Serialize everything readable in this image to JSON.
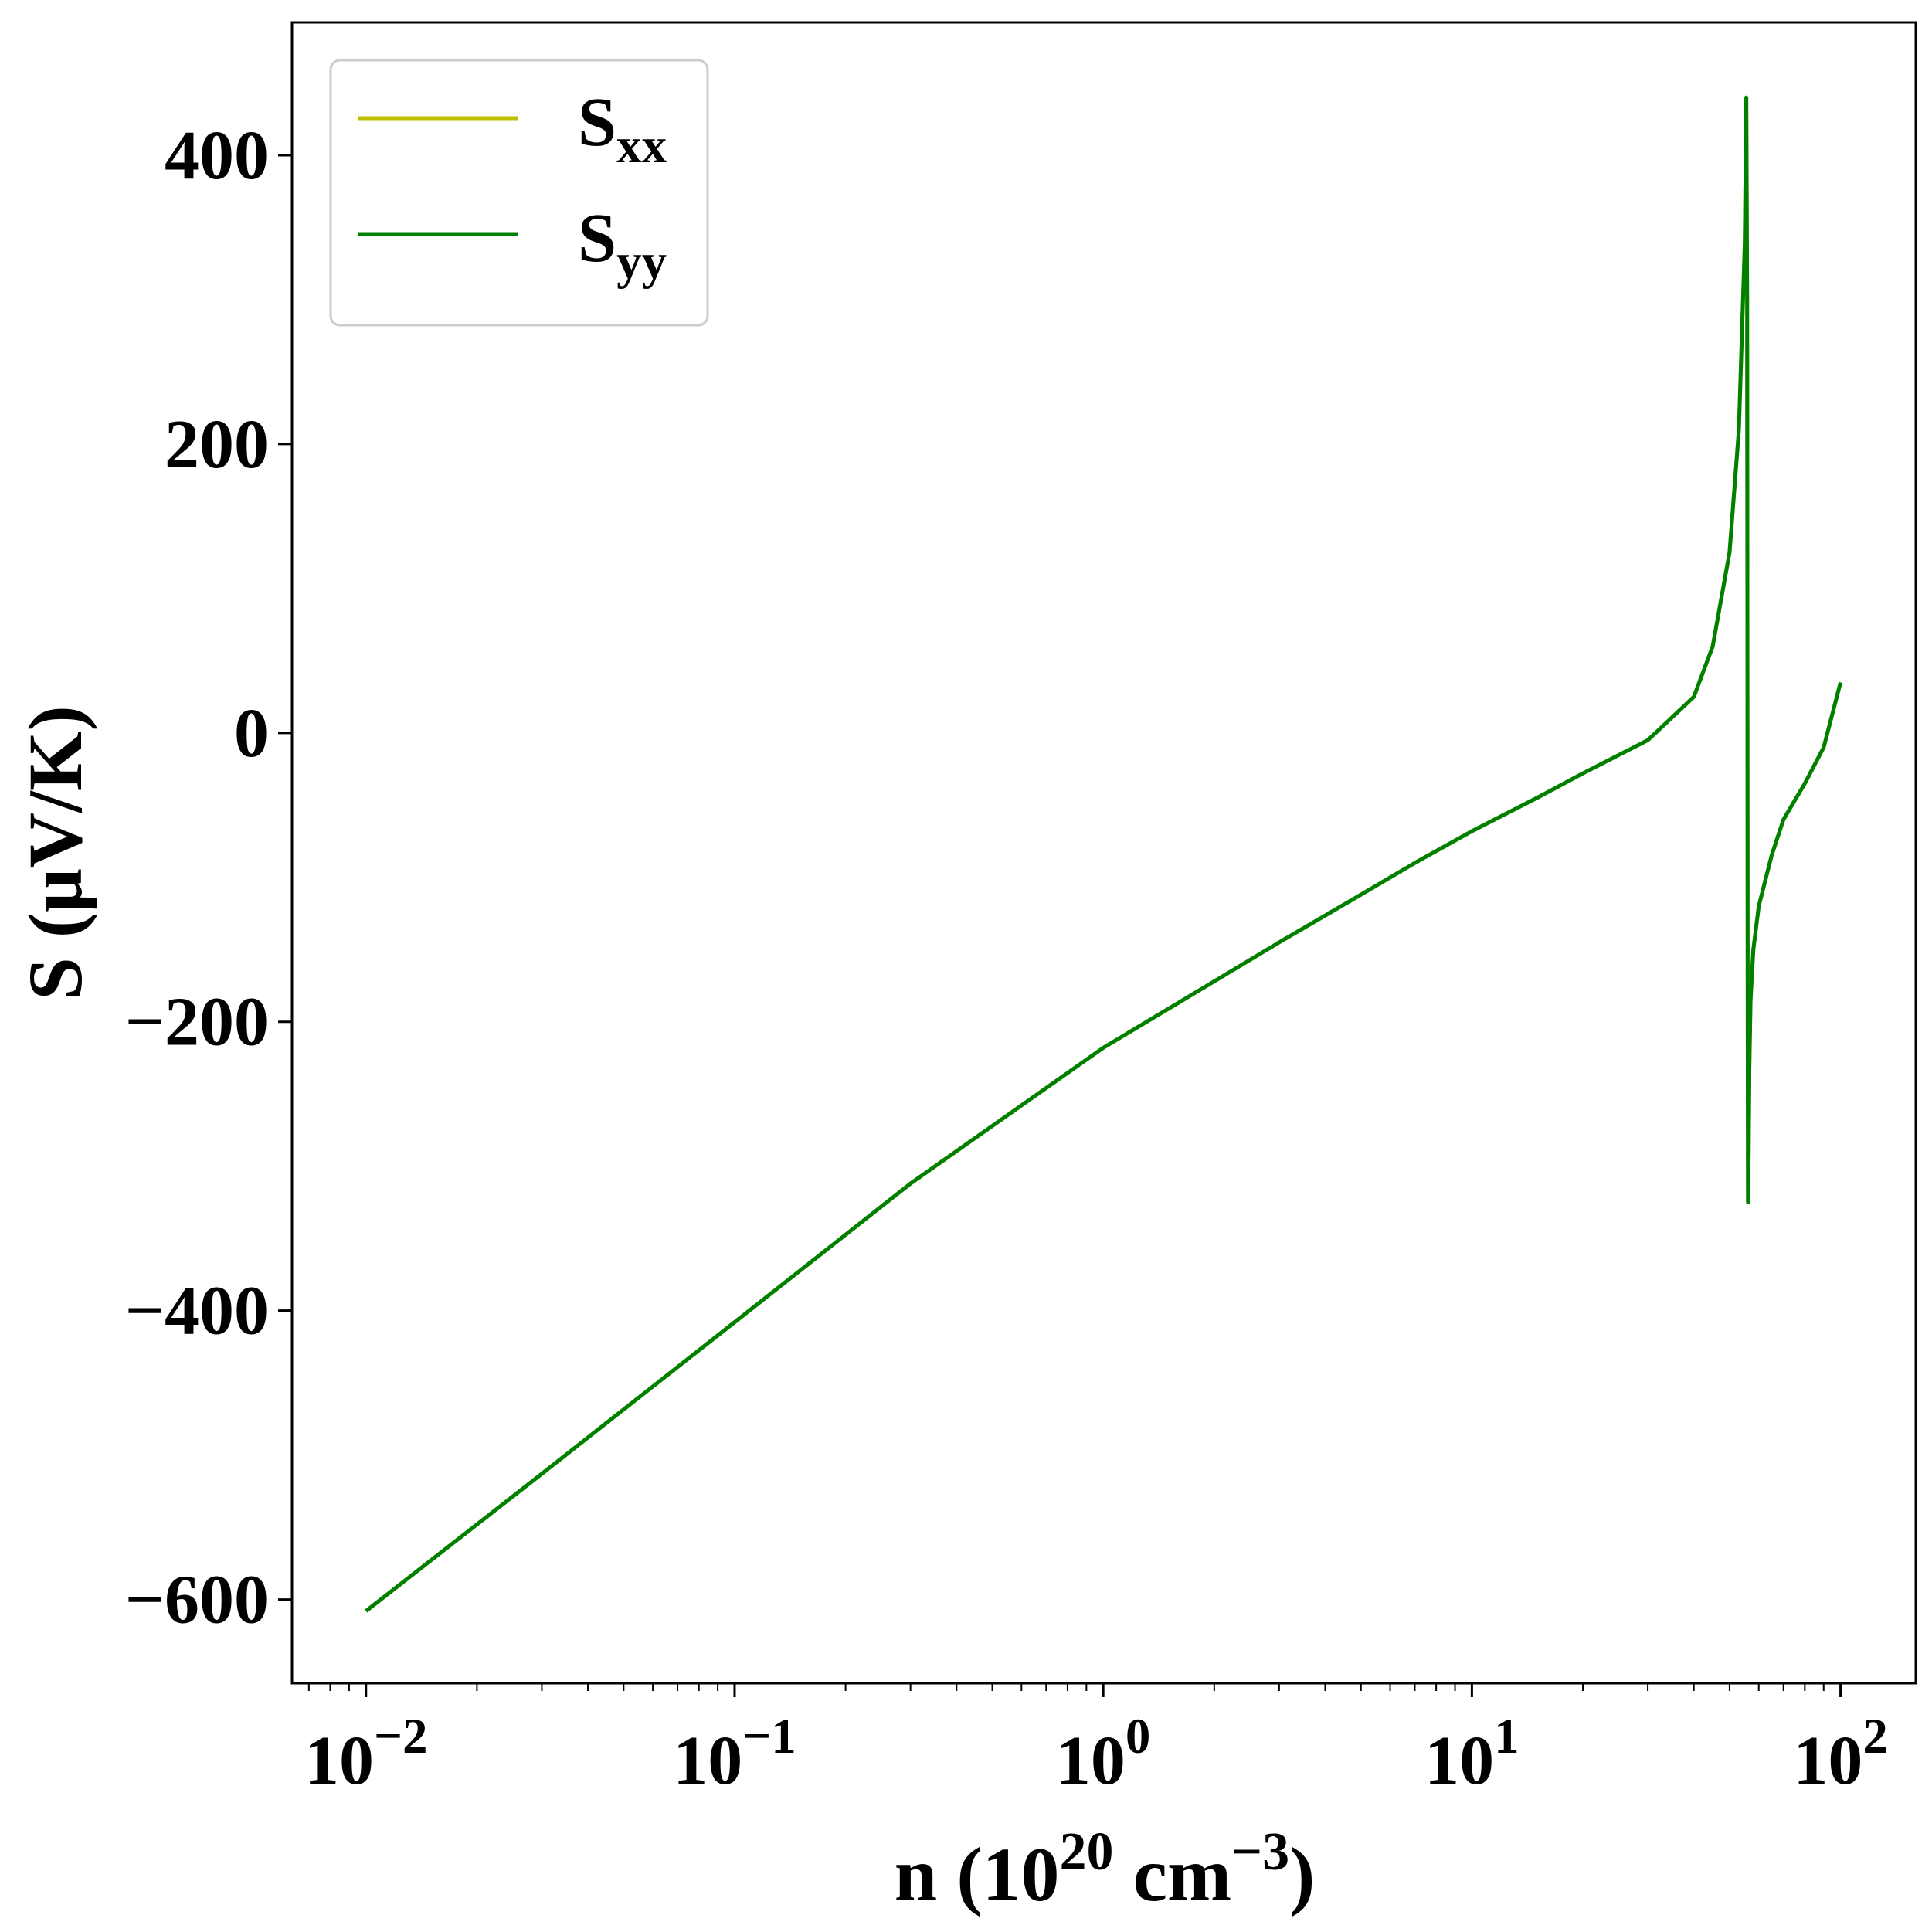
{
  "chart_data": {
    "type": "line",
    "title": "",
    "xlabel": "n (10^20 cm^-3)",
    "ylabel": "S (μV/K)",
    "xscale": "log",
    "xlim": [
      0.0063,
      160
    ],
    "ylim": [
      -658,
      492
    ],
    "x_ticks": [
      {
        "value": 0.01,
        "base": "10",
        "exp": "−2"
      },
      {
        "value": 0.1,
        "base": "10",
        "exp": "−1"
      },
      {
        "value": 1,
        "base": "10",
        "exp": "0"
      },
      {
        "value": 10,
        "base": "10",
        "exp": "1"
      },
      {
        "value": 100,
        "base": "10",
        "exp": "2"
      }
    ],
    "y_ticks": [
      {
        "value": 400,
        "label": "400"
      },
      {
        "value": 200,
        "label": "200"
      },
      {
        "value": 0,
        "label": "0"
      },
      {
        "value": -200,
        "label": "−200"
      },
      {
        "value": -400,
        "label": "−400"
      },
      {
        "value": -600,
        "label": "−600"
      }
    ],
    "grid": false,
    "legend_position": "top-left",
    "series": [
      {
        "name": "Sxx",
        "legend_main": "S",
        "legend_sub": "xx",
        "color": "#bfbf00",
        "x": [
          0.01,
          0.03,
          0.1,
          0.3,
          1,
          2,
          3,
          5,
          7,
          10,
          15,
          20,
          30,
          40,
          45,
          50,
          53,
          55,
          55.5,
          55.8,
          56.0,
          56.1,
          56.3,
          56.6,
          57,
          58,
          60,
          65,
          70,
          80,
          90,
          100
        ],
        "y": [
          -608,
          -513,
          -408,
          -312,
          -218,
          -172,
          -145,
          -112,
          -90,
          -68,
          -45,
          -28,
          -5,
          25,
          60,
          125,
          210,
          340,
          440,
          300,
          -200,
          -325,
          -300,
          -230,
          -185,
          -150,
          -120,
          -85,
          -60,
          -35,
          -10,
          35
        ]
      },
      {
        "name": "Syy",
        "legend_main": "S",
        "legend_sub": "yy",
        "color": "#008000",
        "x": [
          0.01,
          0.03,
          0.1,
          0.3,
          1,
          2,
          3,
          5,
          7,
          10,
          15,
          20,
          30,
          40,
          45,
          50,
          53,
          55,
          55.5,
          55.8,
          56.0,
          56.1,
          56.3,
          56.6,
          57,
          58,
          60,
          65,
          70,
          80,
          90,
          100
        ],
        "y": [
          -608,
          -513,
          -408,
          -312,
          -218,
          -172,
          -145,
          -112,
          -90,
          -68,
          -45,
          -28,
          -5,
          25,
          60,
          125,
          210,
          340,
          440,
          300,
          -200,
          -325,
          -300,
          -230,
          -185,
          -150,
          -120,
          -85,
          -60,
          -35,
          -10,
          35
        ]
      }
    ]
  }
}
